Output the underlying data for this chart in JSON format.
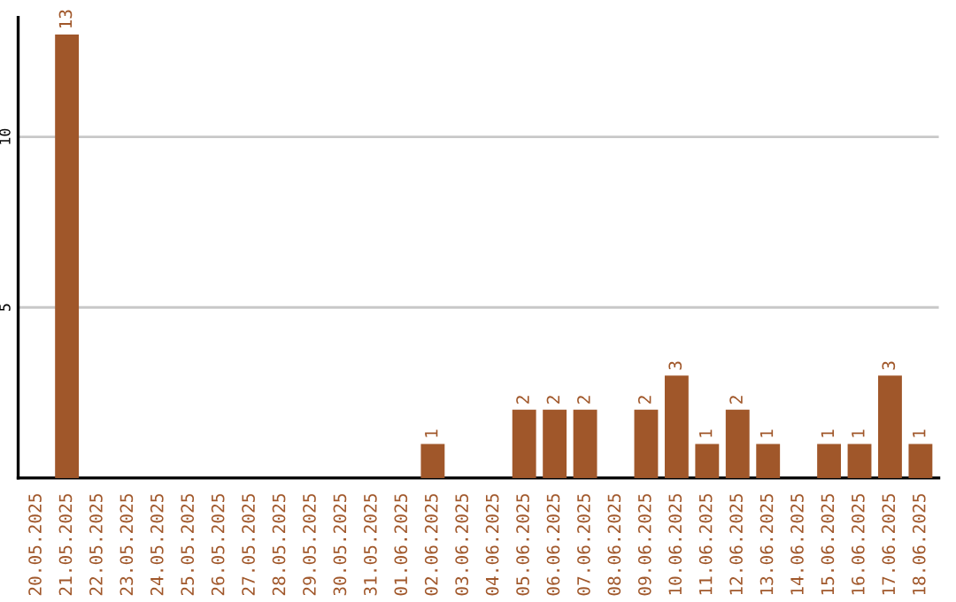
{
  "chart_data": {
    "type": "bar",
    "categories": [
      "20.05.2025",
      "21.05.2025",
      "22.05.2025",
      "23.05.2025",
      "24.05.2025",
      "25.05.2025",
      "26.05.2025",
      "27.05.2025",
      "28.05.2025",
      "29.05.2025",
      "30.05.2025",
      "31.05.2025",
      "01.06.2025",
      "02.06.2025",
      "03.06.2025",
      "04.06.2025",
      "05.06.2025",
      "06.06.2025",
      "07.06.2025",
      "08.06.2025",
      "09.06.2025",
      "10.06.2025",
      "11.06.2025",
      "12.06.2025",
      "13.06.2025",
      "14.06.2025",
      "15.06.2025",
      "16.06.2025",
      "17.06.2025",
      "18.06.2025"
    ],
    "values": [
      0,
      13,
      0,
      0,
      0,
      0,
      0,
      0,
      0,
      0,
      0,
      0,
      0,
      1,
      0,
      0,
      2,
      2,
      2,
      0,
      2,
      3,
      1,
      2,
      1,
      0,
      1,
      1,
      3,
      1
    ],
    "value_labels": [
      null,
      "13",
      null,
      null,
      null,
      null,
      null,
      null,
      null,
      null,
      null,
      null,
      null,
      "1",
      null,
      null,
      "2",
      "2",
      "2",
      null,
      "2",
      "3",
      "1",
      "2",
      "1",
      null,
      "1",
      "1",
      "3",
      "1"
    ],
    "color": "#a0572a",
    "ylim": [
      0,
      13.5
    ],
    "yticks": [
      5,
      10
    ],
    "grid": "y",
    "legend": false
  }
}
